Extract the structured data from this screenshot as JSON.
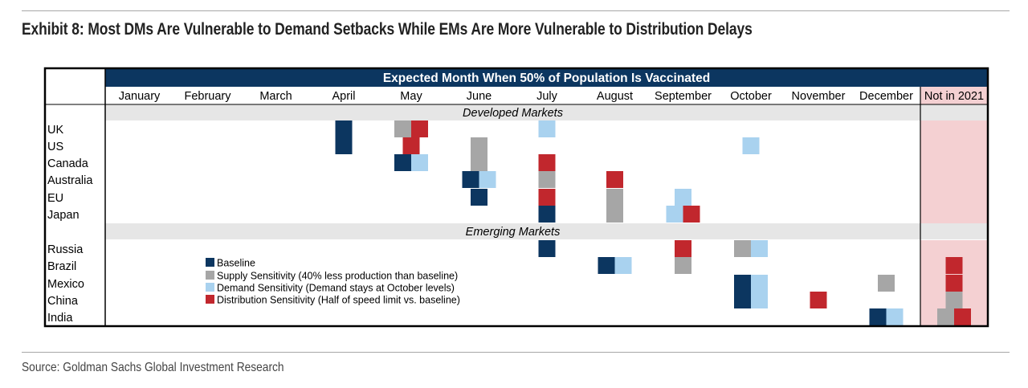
{
  "title": "Exhibit 8: Most DMs Are Vulnerable to Demand Setbacks While EMs Are More Vulnerable to Distribution Delays",
  "source": "Source: Goldman Sachs Global Investment Research",
  "chart_data": {
    "type": "heatmap",
    "header": "Expected Month When 50% of Population Is Vaccinated",
    "columns": [
      "January",
      "February",
      "March",
      "April",
      "May",
      "June",
      "July",
      "August",
      "September",
      "October",
      "November",
      "December",
      "Not in 2021"
    ],
    "groups": [
      {
        "label": "Developed Markets",
        "countries": [
          "UK",
          "US",
          "Canada",
          "Australia",
          "EU",
          "Japan"
        ]
      },
      {
        "label": "Emerging Markets",
        "countries": [
          "Russia",
          "Brazil",
          "Mexico",
          "China",
          "India"
        ]
      }
    ],
    "scenarios": [
      {
        "key": "baseline",
        "label": "Baseline",
        "color": "#0c3660"
      },
      {
        "key": "supply",
        "label": "Supply Sensitivity (40% less production than baseline)",
        "color": "#a6a6a6"
      },
      {
        "key": "demand",
        "label": "Demand Sensitivity (Demand stays at October levels)",
        "color": "#a9d2ef"
      },
      {
        "key": "distribution",
        "label": "Distribution Sensitivity (Half of speed limit vs. baseline)",
        "color": "#c1272d"
      }
    ],
    "results": {
      "UK": {
        "baseline": "April",
        "supply": "May",
        "demand": "July",
        "distribution": "May"
      },
      "US": {
        "baseline": "April",
        "supply": "June",
        "demand": "October",
        "distribution": "May"
      },
      "Canada": {
        "baseline": "May",
        "supply": "June",
        "demand": "May",
        "distribution": "July"
      },
      "Australia": {
        "baseline": "June",
        "supply": "July",
        "demand": "June",
        "distribution": "August"
      },
      "EU": {
        "baseline": "June",
        "supply": "August",
        "demand": "September",
        "distribution": "July"
      },
      "Japan": {
        "baseline": "July",
        "supply": "August",
        "demand": "September",
        "distribution": "September"
      },
      "Russia": {
        "baseline": "July",
        "supply": "October",
        "demand": "October",
        "distribution": "September"
      },
      "Brazil": {
        "baseline": "August",
        "supply": "September",
        "demand": "August",
        "distribution": "Not in 2021"
      },
      "Mexico": {
        "baseline": "October",
        "supply": "December",
        "demand": "October",
        "distribution": "Not in 2021"
      },
      "China": {
        "baseline": "October",
        "supply": "Not in 2021",
        "demand": "October",
        "distribution": "November"
      },
      "India": {
        "baseline": "December",
        "supply": "Not in 2021",
        "demand": "December",
        "distribution": "Not in 2021"
      }
    },
    "colors": {
      "header_bg": "#0c3660",
      "group_band": "#e6e6e6",
      "not_in_2021_bg": "#f4d0d2",
      "border": "#000000"
    }
  }
}
